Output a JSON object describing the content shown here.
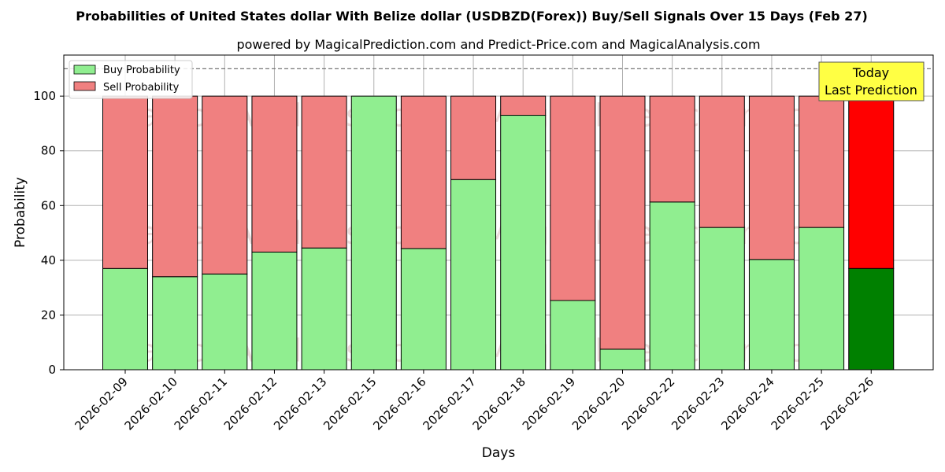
{
  "chart_data": {
    "type": "bar",
    "stacked": true,
    "title": "Probabilities of United States dollar With Belize dollar (USDBZD(Forex)) Buy/Sell Signals Over 15 Days (Feb 27)",
    "subtitle": "powered by MagicalPrediction.com and Predict-Price.com and MagicalAnalysis.com",
    "xlabel": "Days",
    "ylabel": "Probability",
    "ylim": [
      0,
      115
    ],
    "yticks": [
      0,
      20,
      40,
      60,
      80,
      100
    ],
    "grid": true,
    "legend_position": "top-left",
    "reference_line": 110,
    "categories": [
      "2026-02-09",
      "2026-02-10",
      "2026-02-11",
      "2026-02-12",
      "2026-02-13",
      "2026-02-15",
      "2026-02-16",
      "2026-02-17",
      "2026-02-18",
      "2026-02-19",
      "2026-02-20",
      "2026-02-22",
      "2026-02-23",
      "2026-02-24",
      "2026-02-25",
      "2026-02-26"
    ],
    "series": [
      {
        "name": "Buy Probability",
        "color": "#90ee90",
        "values": [
          37,
          34,
          35,
          43,
          44.5,
          100,
          44.3,
          69.5,
          93,
          25.3,
          7.5,
          61.3,
          52,
          40.3,
          52,
          37
        ]
      },
      {
        "name": "Sell Probability",
        "color": "#f08080",
        "values": [
          63,
          66,
          65,
          57,
          55.5,
          0,
          55.7,
          30.5,
          7,
          74.7,
          92.5,
          38.7,
          48,
          59.7,
          48,
          63
        ]
      }
    ],
    "highlight": {
      "index": 15,
      "buy_color": "#008000",
      "sell_color": "#ff0000"
    },
    "annotation": {
      "lines": [
        "Today",
        "Last Prediction"
      ],
      "bg": "#ffff44"
    },
    "watermarks": [
      "MagicalAnalysis.com",
      "MagicalPrediction.com"
    ]
  }
}
